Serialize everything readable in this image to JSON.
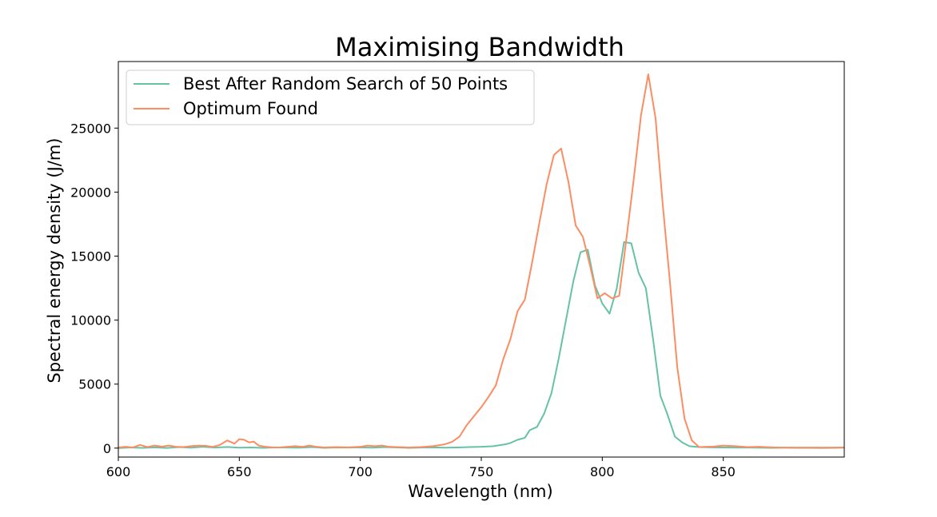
{
  "chart_data": {
    "type": "line",
    "title": "Maximising Bandwidth",
    "xlabel": "Wavelength (nm)",
    "ylabel": "Spectral energy density (J/m)",
    "xlim": [
      600,
      900
    ],
    "ylim": [
      -700,
      30200
    ],
    "xticks": [
      600,
      650,
      700,
      750,
      800,
      850
    ],
    "yticks": [
      0,
      5000,
      10000,
      15000,
      20000,
      25000
    ],
    "grid": false,
    "legend_position": "upper-left",
    "series": [
      {
        "name": "Best After Random Search of 50 Points",
        "color": "#66c2a5",
        "x": [
          600,
          605,
          610,
          615,
          620,
          625,
          630,
          635,
          640,
          645,
          650,
          655,
          660,
          665,
          670,
          675,
          680,
          685,
          690,
          695,
          700,
          705,
          710,
          715,
          720,
          725,
          730,
          735,
          740,
          745,
          750,
          755,
          760,
          762,
          765,
          768,
          770,
          773,
          776,
          779,
          782,
          785,
          788,
          791,
          794,
          797,
          800,
          803,
          806,
          809,
          812,
          815,
          818,
          821,
          824,
          827,
          830,
          833,
          836,
          840,
          845,
          850,
          855,
          860,
          865,
          870,
          875,
          880,
          885,
          890,
          895,
          900
        ],
        "y": [
          0,
          50,
          20,
          60,
          10,
          80,
          30,
          100,
          40,
          90,
          30,
          50,
          20,
          60,
          40,
          30,
          80,
          20,
          50,
          40,
          60,
          30,
          80,
          50,
          20,
          40,
          60,
          30,
          50,
          80,
          100,
          150,
          300,
          400,
          650,
          800,
          1400,
          1650,
          2700,
          4300,
          7000,
          10000,
          13000,
          15300,
          15500,
          12700,
          11300,
          10500,
          12500,
          16100,
          16000,
          13700,
          12500,
          8500,
          4100,
          2600,
          900,
          450,
          150,
          80,
          60,
          50,
          40,
          40,
          30,
          20,
          30,
          20,
          20,
          10,
          20,
          30
        ]
      },
      {
        "name": "Optimum Found",
        "color": "#fc8d62",
        "x": [
          600,
          603,
          606,
          609,
          612,
          615,
          618,
          621,
          624,
          627,
          630,
          633,
          636,
          639,
          642,
          645,
          648,
          650,
          652,
          654,
          656,
          658,
          661,
          664,
          667,
          670,
          673,
          676,
          679,
          682,
          685,
          690,
          695,
          700,
          703,
          706,
          709,
          712,
          715,
          720,
          725,
          730,
          735,
          738,
          741,
          744,
          747,
          750,
          753,
          756,
          759,
          762,
          765,
          768,
          771,
          774,
          777,
          780,
          783,
          786,
          789,
          792,
          795,
          798,
          801,
          804,
          807,
          810,
          813,
          816,
          819,
          822,
          825,
          828,
          831,
          834,
          837,
          840,
          843,
          846,
          850,
          855,
          860,
          865,
          870,
          875,
          880,
          885,
          890,
          895,
          900
        ],
        "y": [
          50,
          100,
          50,
          250,
          80,
          200,
          120,
          200,
          100,
          80,
          150,
          200,
          180,
          100,
          250,
          600,
          350,
          700,
          650,
          450,
          500,
          200,
          100,
          50,
          60,
          100,
          150,
          100,
          200,
          100,
          50,
          80,
          60,
          100,
          200,
          150,
          200,
          100,
          80,
          50,
          80,
          150,
          300,
          500,
          900,
          1800,
          2500,
          3200,
          4000,
          4900,
          6900,
          8500,
          10700,
          11600,
          14500,
          17600,
          20600,
          22900,
          23400,
          20800,
          17400,
          16500,
          14200,
          11700,
          12100,
          11700,
          11900,
          16400,
          21000,
          26000,
          29200,
          25800,
          19000,
          12900,
          6300,
          2300,
          600,
          80,
          100,
          120,
          200,
          150,
          80,
          100,
          60,
          40,
          40,
          40,
          40,
          40,
          50
        ]
      }
    ]
  }
}
